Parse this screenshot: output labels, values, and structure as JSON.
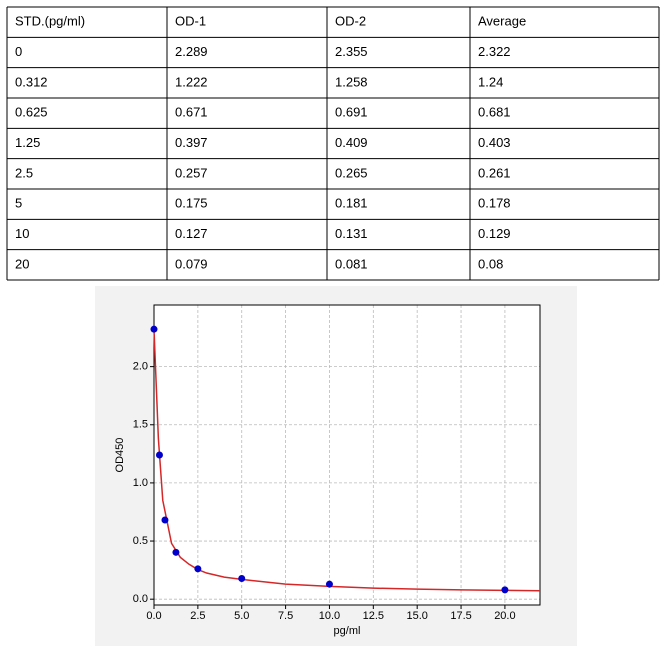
{
  "table": {
    "header": [
      "STD.(pg/ml)",
      "OD-1",
      "OD-2",
      "Average"
    ],
    "rows": [
      [
        "0",
        "2.289",
        "2.355",
        "2.322"
      ],
      [
        "0.312",
        "1.222",
        "1.258",
        "1.24"
      ],
      [
        "0.625",
        "0.671",
        "0.691",
        "0.681"
      ],
      [
        "1.25",
        "0.397",
        "0.409",
        "0.403"
      ],
      [
        "2.5",
        "0.257",
        "0.265",
        "0.261"
      ],
      [
        "5",
        "0.175",
        "0.181",
        "0.178"
      ],
      [
        "10",
        "0.127",
        "0.131",
        "0.129"
      ],
      [
        "20",
        "0.079",
        "0.081",
        "0.08"
      ]
    ]
  },
  "chart_data": {
    "type": "scatter",
    "xlabel": "pg/ml",
    "ylabel": "OD450",
    "xlim": [
      0,
      22
    ],
    "ylim": [
      -0.05,
      2.53
    ],
    "grid": true,
    "xticks": [
      {
        "value": 0,
        "label": "0.0"
      },
      {
        "value": 2.5,
        "label": "2.5"
      },
      {
        "value": 5,
        "label": "5.0"
      },
      {
        "value": 7.5,
        "label": "7.5"
      },
      {
        "value": 10,
        "label": "10.0"
      },
      {
        "value": 12.5,
        "label": "12.5"
      },
      {
        "value": 15,
        "label": "15.0"
      },
      {
        "value": 17.5,
        "label": "17.5"
      },
      {
        "value": 20,
        "label": "20.0"
      }
    ],
    "yticks": [
      {
        "value": 0,
        "label": "0.0"
      },
      {
        "value": 0.5,
        "label": "0.5"
      },
      {
        "value": 1,
        "label": "1.0"
      },
      {
        "value": 1.5,
        "label": "1.5"
      },
      {
        "value": 2,
        "label": "2.0"
      }
    ],
    "series": [
      {
        "color": "#d62728",
        "line": true,
        "x": [
          0,
          0.25,
          0.5,
          1,
          1.5,
          2,
          2.5,
          3,
          4,
          5,
          7.5,
          10,
          12.5,
          15,
          17.5,
          20,
          22
        ],
        "values": [
          2.32,
          1.38,
          0.85,
          0.48,
          0.36,
          0.3,
          0.255,
          0.225,
          0.19,
          0.17,
          0.13,
          0.11,
          0.095,
          0.087,
          0.08,
          0.076,
          0.073
        ]
      },
      {
        "color": "#0000cc",
        "line": false,
        "x": [
          0,
          0.312,
          0.625,
          1.25,
          2.5,
          5,
          10,
          20
        ],
        "values": [
          2.322,
          1.24,
          0.681,
          0.403,
          0.261,
          0.178,
          0.129,
          0.08
        ]
      }
    ]
  }
}
